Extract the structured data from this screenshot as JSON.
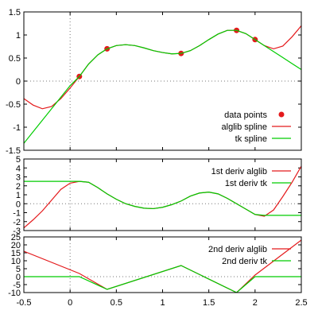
{
  "chart_data": [
    {
      "type": "line",
      "title": "",
      "xlabel": "",
      "ylabel": "",
      "xlim": [
        -0.5,
        2.5
      ],
      "ylim": [
        -1.5,
        1.5
      ],
      "xticks": [
        "-0.5",
        "0",
        "0.5",
        "1",
        "1.5",
        "2",
        "2.5"
      ],
      "yticks": [
        "-1.5",
        "-1",
        "-0.5",
        "0",
        "0.5",
        "1",
        "1.5"
      ],
      "grid": "zero-lines dotted",
      "legend_position": "bottom-right",
      "series": [
        {
          "name": "data points",
          "style": "points",
          "color": "#e41a1c",
          "x": [
            0.1,
            0.4,
            1.2,
            1.8,
            2.0
          ],
          "y": [
            0.1,
            0.7,
            0.6,
            1.1,
            0.9
          ]
        },
        {
          "name": "alglib spline",
          "style": "line",
          "color": "#e41a1c",
          "x": [
            -0.5,
            -0.4,
            -0.3,
            -0.2,
            -0.1,
            0.0,
            0.1,
            0.2,
            0.3,
            0.4,
            0.5,
            0.6,
            0.7,
            0.8,
            0.9,
            1.0,
            1.1,
            1.2,
            1.3,
            1.4,
            1.5,
            1.6,
            1.7,
            1.8,
            1.9,
            2.0,
            2.1,
            2.2,
            2.3,
            2.4,
            2.5
          ],
          "y": [
            -0.38,
            -0.52,
            -0.6,
            -0.55,
            -0.38,
            -0.15,
            0.1,
            0.37,
            0.57,
            0.7,
            0.77,
            0.79,
            0.77,
            0.72,
            0.66,
            0.62,
            0.59,
            0.6,
            0.66,
            0.77,
            0.9,
            1.02,
            1.1,
            1.1,
            1.03,
            0.9,
            0.77,
            0.7,
            0.76,
            0.96,
            1.2
          ]
        },
        {
          "name": "tk spline",
          "style": "line",
          "color": "#00cc00",
          "x": [
            -0.5,
            -0.4,
            -0.3,
            -0.2,
            -0.1,
            0.0,
            0.1,
            0.2,
            0.3,
            0.4,
            0.5,
            0.6,
            0.7,
            0.8,
            0.9,
            1.0,
            1.1,
            1.2,
            1.3,
            1.4,
            1.5,
            1.6,
            1.7,
            1.8,
            1.9,
            2.0,
            2.1,
            2.2,
            2.3,
            2.4,
            2.5
          ],
          "y": [
            -1.35,
            -1.1,
            -0.85,
            -0.6,
            -0.35,
            -0.1,
            0.1,
            0.37,
            0.57,
            0.7,
            0.77,
            0.79,
            0.77,
            0.72,
            0.66,
            0.62,
            0.59,
            0.6,
            0.66,
            0.77,
            0.9,
            1.02,
            1.1,
            1.1,
            1.03,
            0.9,
            0.77,
            0.64,
            0.51,
            0.38,
            0.25
          ]
        }
      ]
    },
    {
      "type": "line",
      "title": "",
      "xlabel": "",
      "ylabel": "",
      "xlim": [
        -0.5,
        2.5
      ],
      "ylim": [
        -3,
        5
      ],
      "xticks": [],
      "yticks": [
        "-3",
        "-2",
        "-1",
        "0",
        "1",
        "2",
        "3",
        "4",
        "5"
      ],
      "grid": "zero-lines dotted",
      "legend_position": "top-right",
      "series": [
        {
          "name": "1st deriv alglib",
          "style": "line",
          "color": "#e41a1c",
          "x": [
            -0.5,
            -0.4,
            -0.3,
            -0.2,
            -0.1,
            0.0,
            0.1,
            0.2,
            0.3,
            0.4,
            0.5,
            0.6,
            0.7,
            0.8,
            0.9,
            1.0,
            1.1,
            1.2,
            1.3,
            1.4,
            1.5,
            1.6,
            1.7,
            1.8,
            1.9,
            2.0,
            2.1,
            2.2,
            2.3,
            2.4,
            2.5
          ],
          "y": [
            -2.7,
            -1.8,
            -0.8,
            0.4,
            1.6,
            2.3,
            2.5,
            2.4,
            1.8,
            1.1,
            0.5,
            0.0,
            -0.3,
            -0.5,
            -0.55,
            -0.4,
            -0.1,
            0.3,
            0.85,
            1.2,
            1.3,
            1.1,
            0.6,
            0.0,
            -0.6,
            -1.2,
            -1.4,
            -0.7,
            0.8,
            2.4,
            4.2
          ]
        },
        {
          "name": "1st deriv tk",
          "style": "line",
          "color": "#00cc00",
          "x": [
            -0.5,
            -0.4,
            -0.3,
            -0.2,
            -0.1,
            0.0,
            0.1,
            0.2,
            0.3,
            0.4,
            0.5,
            0.6,
            0.7,
            0.8,
            0.9,
            1.0,
            1.1,
            1.2,
            1.3,
            1.4,
            1.5,
            1.6,
            1.7,
            1.8,
            1.9,
            2.0,
            2.1,
            2.2,
            2.3,
            2.4,
            2.5
          ],
          "y": [
            2.5,
            2.5,
            2.5,
            2.5,
            2.5,
            2.5,
            2.5,
            2.4,
            1.8,
            1.1,
            0.5,
            0.0,
            -0.3,
            -0.5,
            -0.55,
            -0.4,
            -0.1,
            0.3,
            0.85,
            1.2,
            1.3,
            1.1,
            0.6,
            0.0,
            -0.6,
            -1.2,
            -1.3,
            -1.3,
            -1.3,
            -1.3,
            -1.3
          ]
        }
      ]
    },
    {
      "type": "line",
      "title": "",
      "xlabel": "",
      "ylabel": "",
      "xlim": [
        -0.5,
        2.5
      ],
      "ylim": [
        -10,
        25
      ],
      "xticks": [
        "-0.5",
        "0",
        "0.5",
        "1",
        "1.5",
        "2",
        "2.5"
      ],
      "yticks": [
        "-10",
        "-5",
        "0",
        "5",
        "10",
        "15",
        "20",
        "25"
      ],
      "grid": "zero-lines dotted",
      "legend_position": "top-right",
      "series": [
        {
          "name": "2nd deriv alglib",
          "style": "line",
          "color": "#e41a1c",
          "x": [
            -0.5,
            0.1,
            0.4,
            1.2,
            1.8,
            2.0,
            2.5
          ],
          "y": [
            16,
            2,
            -8,
            7,
            -10,
            1,
            23
          ]
        },
        {
          "name": "2nd deriv tk",
          "style": "line",
          "color": "#00cc00",
          "x": [
            -0.5,
            0.1,
            0.4,
            1.2,
            1.8,
            2.0,
            2.5
          ],
          "y": [
            0,
            0,
            -8,
            7,
            -10,
            0,
            0
          ]
        }
      ]
    }
  ]
}
